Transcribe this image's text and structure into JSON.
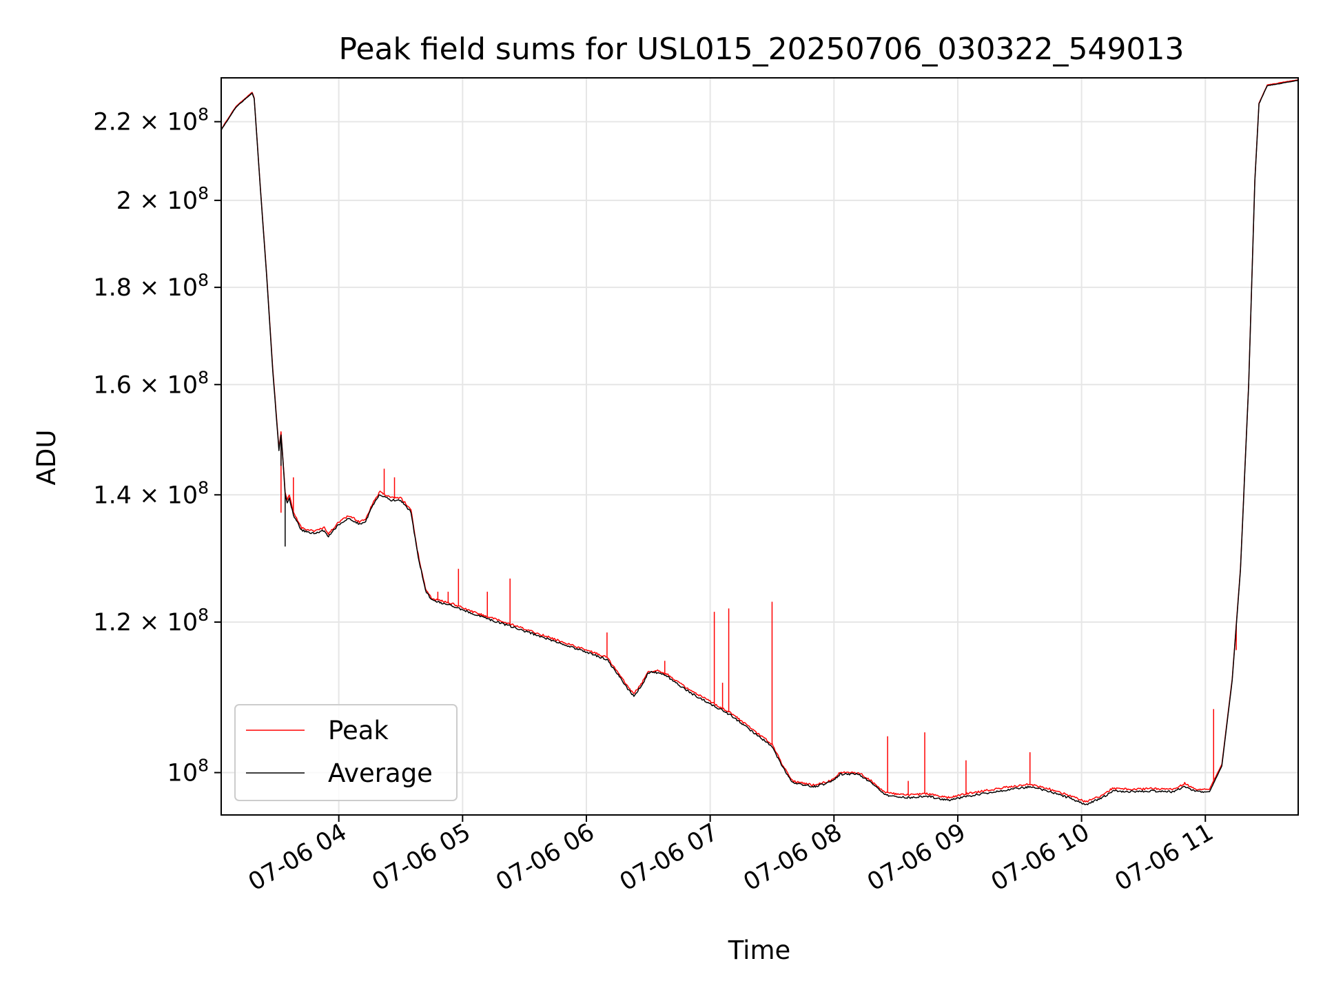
{
  "chart_data": {
    "type": "line",
    "title": "Peak field sums for USL015_20250706_030322_549013",
    "xlabel": "Time",
    "ylabel": "ADU",
    "yscale": "log",
    "grid": true,
    "legend_placement": "lower-left",
    "xlim": [
      "07-06 03:03",
      "07-06 11:45"
    ],
    "ylim": [
      95000000,
      232000000
    ],
    "x_ticks": [
      "07-06 04",
      "07-06 05",
      "07-06 06",
      "07-06 07",
      "07-06 08",
      "07-06 09",
      "07-06 10",
      "07-06 11"
    ],
    "y_ticks": [
      {
        "value": 100000000,
        "mantissa": "",
        "exp": "8",
        "base": "10"
      },
      {
        "value": 120000000,
        "mantissa": "1.2",
        "exp": "8",
        "base": "10"
      },
      {
        "value": 140000000,
        "mantissa": "1.4",
        "exp": "8",
        "base": "10"
      },
      {
        "value": 160000000,
        "mantissa": "1.6",
        "exp": "8",
        "base": "10"
      },
      {
        "value": 180000000,
        "mantissa": "1.8",
        "exp": "8",
        "base": "10"
      },
      {
        "value": 200000000,
        "mantissa": "2",
        "exp": "8",
        "base": "10"
      },
      {
        "value": 220000000,
        "mantissa": "2.2",
        "exp": "8",
        "base": "10"
      }
    ],
    "series": [
      {
        "name": "Peak",
        "color": "#ff0000",
        "points": [
          [
            "07-06 03:03",
            218000000
          ],
          [
            "07-06 03:10",
            224000000
          ],
          [
            "07-06 03:18",
            228000000
          ],
          [
            "07-06 03:19",
            226500000
          ],
          [
            "07-06 03:22",
            203000000
          ],
          [
            "07-06 03:25",
            183000000
          ],
          [
            "07-06 03:28",
            163000000
          ],
          [
            "07-06 03:30",
            153000000
          ],
          [
            "07-06 03:31",
            148000000
          ],
          [
            "07-06 03:32",
            151000000
          ],
          [
            "07-06 03:33",
            146000000
          ],
          [
            "07-06 03:34",
            140500000
          ],
          [
            "07-06 03:35",
            139000000
          ],
          [
            "07-06 03:36",
            140000000
          ],
          [
            "07-06 03:38",
            137000000
          ],
          [
            "07-06 03:42",
            134500000
          ],
          [
            "07-06 03:48",
            134000000
          ],
          [
            "07-06 03:53",
            134500000
          ],
          [
            "07-06 03:55",
            133500000
          ],
          [
            "07-06 04:00",
            135500000
          ],
          [
            "07-06 04:05",
            136500000
          ],
          [
            "07-06 04:10",
            135500000
          ],
          [
            "07-06 04:13",
            136000000
          ],
          [
            "07-06 04:17",
            139000000
          ],
          [
            "07-06 04:20",
            140500000
          ],
          [
            "07-06 04:25",
            139500000
          ],
          [
            "07-06 04:30",
            139500000
          ],
          [
            "07-06 04:35",
            137500000
          ],
          [
            "07-06 04:38",
            131000000
          ],
          [
            "07-06 04:42",
            125000000
          ],
          [
            "07-06 04:45",
            123500000
          ],
          [
            "07-06 04:55",
            122700000
          ],
          [
            "07-06 05:05",
            121500000
          ],
          [
            "07-06 05:15",
            120500000
          ],
          [
            "07-06 05:20",
            120000000
          ],
          [
            "07-06 05:30",
            119000000
          ],
          [
            "07-06 05:40",
            118000000
          ],
          [
            "07-06 05:50",
            117000000
          ],
          [
            "07-06 06:00",
            116000000
          ],
          [
            "07-06 06:10",
            115000000
          ],
          [
            "07-06 06:15",
            113000000
          ],
          [
            "07-06 06:20",
            111000000
          ],
          [
            "07-06 06:23",
            110000000
          ],
          [
            "07-06 06:27",
            111500000
          ],
          [
            "07-06 06:30",
            113000000
          ],
          [
            "07-06 06:35",
            113200000
          ],
          [
            "07-06 06:40",
            112500000
          ],
          [
            "07-06 06:50",
            110500000
          ],
          [
            "07-06 07:00",
            109000000
          ],
          [
            "07-06 07:10",
            107500000
          ],
          [
            "07-06 07:20",
            105500000
          ],
          [
            "07-06 07:30",
            103500000
          ],
          [
            "07-06 07:33",
            102000000
          ],
          [
            "07-06 07:35",
            101000000
          ],
          [
            "07-06 07:40",
            99000000
          ],
          [
            "07-06 07:50",
            98500000
          ],
          [
            "07-06 07:58",
            99000000
          ],
          [
            "07-06 08:03",
            100000000
          ],
          [
            "07-06 08:12",
            100000000
          ],
          [
            "07-06 08:18",
            99000000
          ],
          [
            "07-06 08:25",
            97600000
          ],
          [
            "07-06 08:35",
            97300000
          ],
          [
            "07-06 08:45",
            97500000
          ],
          [
            "07-06 08:55",
            97000000
          ],
          [
            "07-06 09:05",
            97500000
          ],
          [
            "07-06 09:15",
            97900000
          ],
          [
            "07-06 09:25",
            98300000
          ],
          [
            "07-06 09:35",
            98600000
          ],
          [
            "07-06 09:45",
            98000000
          ],
          [
            "07-06 09:55",
            97200000
          ],
          [
            "07-06 10:02",
            96500000
          ],
          [
            "07-06 10:10",
            97300000
          ],
          [
            "07-06 10:15",
            98100000
          ],
          [
            "07-06 10:25",
            98000000
          ],
          [
            "07-06 10:35",
            98100000
          ],
          [
            "07-06 10:45",
            98000000
          ],
          [
            "07-06 10:50",
            98700000
          ],
          [
            "07-06 10:55",
            98000000
          ],
          [
            "07-06 11:02",
            98000000
          ],
          [
            "07-06 11:08",
            101000000
          ],
          [
            "07-06 11:13",
            112000000
          ],
          [
            "07-06 11:17",
            128000000
          ],
          [
            "07-06 11:21",
            160000000
          ],
          [
            "07-06 11:24",
            205000000
          ],
          [
            "07-06 11:26",
            225000000
          ],
          [
            "07-06 11:30",
            230000000
          ],
          [
            "07-06 11:45",
            231500000
          ]
        ],
        "spikes": [
          [
            "07-06 03:32",
            137000000
          ],
          [
            "07-06 03:38",
            143000000
          ],
          [
            "07-06 04:22",
            144500000
          ],
          [
            "07-06 04:27",
            143000000
          ],
          [
            "07-06 04:48",
            124500000
          ],
          [
            "07-06 04:53",
            124500000
          ],
          [
            "07-06 04:58",
            128000000
          ],
          [
            "07-06 05:12",
            124500000
          ],
          [
            "07-06 05:23",
            126500000
          ],
          [
            "07-06 06:10",
            118500000
          ],
          [
            "07-06 06:38",
            114500000
          ],
          [
            "07-06 07:02",
            121500000
          ],
          [
            "07-06 07:06",
            111500000
          ],
          [
            "07-06 07:09",
            122000000
          ],
          [
            "07-06 07:30",
            123000000
          ],
          [
            "07-06 08:26",
            104500000
          ],
          [
            "07-06 08:36",
            99000000
          ],
          [
            "07-06 08:44",
            105000000
          ],
          [
            "07-06 09:04",
            101500000
          ],
          [
            "07-06 09:35",
            102500000
          ],
          [
            "07-06 11:04",
            108000000
          ],
          [
            "07-06 11:15",
            116000000
          ]
        ]
      },
      {
        "name": "Average",
        "color": "#000000",
        "points": [
          [
            "07-06 03:03",
            217800000
          ],
          [
            "07-06 03:10",
            223800000
          ],
          [
            "07-06 03:18",
            227800000
          ],
          [
            "07-06 03:19",
            226300000
          ],
          [
            "07-06 03:22",
            202800000
          ],
          [
            "07-06 03:25",
            182700000
          ],
          [
            "07-06 03:28",
            162600000
          ],
          [
            "07-06 03:30",
            152600000
          ],
          [
            "07-06 03:31",
            147600000
          ],
          [
            "07-06 03:32",
            150600000
          ],
          [
            "07-06 03:33",
            145600000
          ],
          [
            "07-06 03:34",
            140100000
          ],
          [
            "07-06 03:35",
            138600000
          ],
          [
            "07-06 03:36",
            139600000
          ],
          [
            "07-06 03:38",
            136600000
          ],
          [
            "07-06 03:42",
            134100000
          ],
          [
            "07-06 03:48",
            133600000
          ],
          [
            "07-06 03:53",
            134100000
          ],
          [
            "07-06 03:55",
            133100000
          ],
          [
            "07-06 04:00",
            135100000
          ],
          [
            "07-06 04:05",
            136100000
          ],
          [
            "07-06 04:10",
            135100000
          ],
          [
            "07-06 04:13",
            135600000
          ],
          [
            "07-06 04:17",
            138600000
          ],
          [
            "07-06 04:20",
            140100000
          ],
          [
            "07-06 04:25",
            139100000
          ],
          [
            "07-06 04:30",
            139100000
          ],
          [
            "07-06 04:35",
            137100000
          ],
          [
            "07-06 04:38",
            130700000
          ],
          [
            "07-06 04:42",
            124700000
          ],
          [
            "07-06 04:45",
            123200000
          ],
          [
            "07-06 04:55",
            122400000
          ],
          [
            "07-06 05:05",
            121200000
          ],
          [
            "07-06 05:15",
            120200000
          ],
          [
            "07-06 05:20",
            119700000
          ],
          [
            "07-06 05:30",
            118700000
          ],
          [
            "07-06 05:40",
            117700000
          ],
          [
            "07-06 05:50",
            116700000
          ],
          [
            "07-06 06:00",
            115700000
          ],
          [
            "07-06 06:10",
            114700000
          ],
          [
            "07-06 06:15",
            112700000
          ],
          [
            "07-06 06:20",
            110700000
          ],
          [
            "07-06 06:23",
            109700000
          ],
          [
            "07-06 06:27",
            111200000
          ],
          [
            "07-06 06:30",
            112900000
          ],
          [
            "07-06 06:35",
            112900000
          ],
          [
            "07-06 06:40",
            112200000
          ],
          [
            "07-06 06:50",
            110200000
          ],
          [
            "07-06 07:00",
            108700000
          ],
          [
            "07-06 07:10",
            107200000
          ],
          [
            "07-06 07:20",
            105200000
          ],
          [
            "07-06 07:30",
            103200000
          ],
          [
            "07-06 07:33",
            101700000
          ],
          [
            "07-06 07:35",
            100700000
          ],
          [
            "07-06 07:40",
            98800000
          ],
          [
            "07-06 07:50",
            98300000
          ],
          [
            "07-06 07:58",
            98800000
          ],
          [
            "07-06 08:03",
            99800000
          ],
          [
            "07-06 08:12",
            99800000
          ],
          [
            "07-06 08:18",
            98800000
          ],
          [
            "07-06 08:25",
            97300000
          ],
          [
            "07-06 08:35",
            97000000
          ],
          [
            "07-06 08:45",
            97200000
          ],
          [
            "07-06 08:55",
            96700000
          ],
          [
            "07-06 09:05",
            97200000
          ],
          [
            "07-06 09:15",
            97600000
          ],
          [
            "07-06 09:25",
            98000000
          ],
          [
            "07-06 09:35",
            98300000
          ],
          [
            "07-06 09:45",
            97700000
          ],
          [
            "07-06 09:55",
            96900000
          ],
          [
            "07-06 10:02",
            96200000
          ],
          [
            "07-06 10:10",
            97000000
          ],
          [
            "07-06 10:15",
            97800000
          ],
          [
            "07-06 10:25",
            97700000
          ],
          [
            "07-06 10:35",
            97800000
          ],
          [
            "07-06 10:45",
            97700000
          ],
          [
            "07-06 10:50",
            98400000
          ],
          [
            "07-06 10:55",
            97700000
          ],
          [
            "07-06 11:02",
            97700000
          ],
          [
            "07-06 11:08",
            100800000
          ],
          [
            "07-06 11:13",
            111800000
          ],
          [
            "07-06 11:17",
            127800000
          ],
          [
            "07-06 11:21",
            159800000
          ],
          [
            "07-06 11:24",
            204800000
          ],
          [
            "07-06 11:26",
            224800000
          ],
          [
            "07-06 11:30",
            229800000
          ],
          [
            "07-06 11:45",
            231300000
          ]
        ],
        "spikes": [
          [
            "07-06 03:34",
            131500000
          ],
          [
            "07-06 03:32",
            145000000
          ]
        ]
      }
    ]
  }
}
